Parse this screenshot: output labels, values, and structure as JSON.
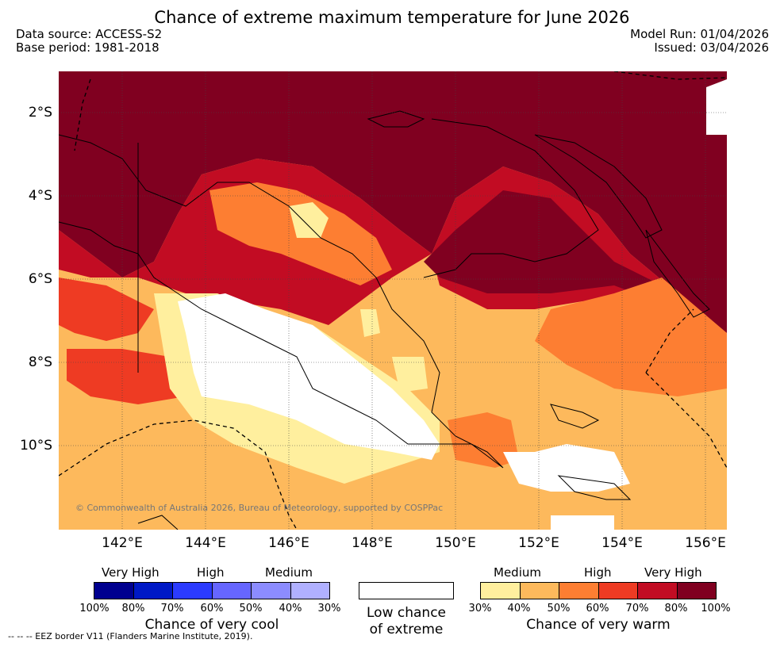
{
  "title": "Chance of extreme maximum temperature for June 2026",
  "meta": {
    "data_source": "Data source: ACCESS-S2",
    "base_period": "Base period: 1981-2018",
    "model_run": "Model Run: 01/04/2026",
    "issued": "Issued: 03/04/2026"
  },
  "map": {
    "lat_labels": [
      "2°S",
      "4°S",
      "6°S",
      "8°S",
      "10°S"
    ],
    "lon_labels": [
      "142°E",
      "144°E",
      "146°E",
      "148°E",
      "150°E",
      "152°E",
      "154°E",
      "156°E"
    ],
    "copyright": "© Commonwealth of Australia 2026, Bureau of Meteorology, supported by COSPPac"
  },
  "legend": {
    "cool": {
      "categories": [
        "Very High",
        "High",
        "Medium"
      ],
      "ticks": [
        "100%",
        "80%",
        "70%",
        "60%",
        "50%",
        "40%",
        "30%"
      ],
      "colors": [
        "#00008f",
        "#0019c6",
        "#2b3bff",
        "#6666ff",
        "#8c8cff",
        "#b0b0ff"
      ],
      "caption": "Chance of very cool"
    },
    "neutral": {
      "caption_line1": "Low chance",
      "caption_line2": "of extreme"
    },
    "warm": {
      "categories": [
        "Medium",
        "High",
        "Very High"
      ],
      "ticks": [
        "30%",
        "40%",
        "50%",
        "60%",
        "70%",
        "80%",
        "100%"
      ],
      "colors": [
        "#ffef9e",
        "#fdb95c",
        "#fd7e32",
        "#ee3b23",
        "#c20c23",
        "#800020"
      ],
      "caption": "Chance of very warm"
    }
  },
  "footer": "--  --  -- EEZ border V11 (Flanders Marine Institute, 2019)."
}
